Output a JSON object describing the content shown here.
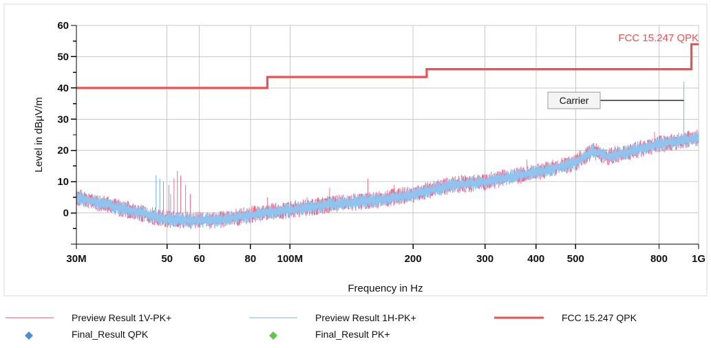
{
  "chart_data": {
    "type": "line",
    "xlabel": "Frequency in Hz",
    "ylabel": "Level in dBµV/m",
    "x_scale": "log",
    "xlim": [
      30000000,
      1000000000
    ],
    "ylim": [
      -10,
      60
    ],
    "x_ticks": [
      {
        "value": 30000000,
        "label": "30M"
      },
      {
        "value": 50000000,
        "label": "50"
      },
      {
        "value": 60000000,
        "label": "60"
      },
      {
        "value": 80000000,
        "label": "80"
      },
      {
        "value": 100000000,
        "label": "100M"
      },
      {
        "value": 200000000,
        "label": "200"
      },
      {
        "value": 300000000,
        "label": "300"
      },
      {
        "value": 400000000,
        "label": "400"
      },
      {
        "value": 500000000,
        "label": "500"
      },
      {
        "value": 800000000,
        "label": "800"
      },
      {
        "value": 1000000000,
        "label": "1G"
      }
    ],
    "y_ticks": [
      0,
      10,
      20,
      30,
      40,
      50,
      60
    ],
    "grid": true,
    "series": [
      {
        "name": "Preview Result 1V-PK+",
        "color": "#f0708f",
        "style": "thin-line",
        "profile": [
          [
            30000000,
            5
          ],
          [
            40000000,
            1
          ],
          [
            50000000,
            -2
          ],
          [
            60000000,
            -2.5
          ],
          [
            70000000,
            -2
          ],
          [
            85000000,
            0
          ],
          [
            100000000,
            1
          ],
          [
            130000000,
            3
          ],
          [
            160000000,
            4
          ],
          [
            200000000,
            6
          ],
          [
            250000000,
            9
          ],
          [
            300000000,
            10
          ],
          [
            400000000,
            13
          ],
          [
            500000000,
            16
          ],
          [
            550000000,
            20
          ],
          [
            600000000,
            18
          ],
          [
            800000000,
            22
          ],
          [
            900000000,
            23
          ],
          [
            1000000000,
            24
          ]
        ],
        "spikes": [
          [
            49000000,
            10
          ],
          [
            50500000,
            9
          ],
          [
            52000000,
            11
          ],
          [
            53000000,
            13.5
          ],
          [
            54000000,
            12
          ],
          [
            55500000,
            9
          ],
          [
            57000000,
            6
          ],
          [
            88000000,
            5
          ],
          [
            110000000,
            5
          ],
          [
            125000000,
            8
          ],
          [
            155000000,
            11
          ],
          [
            180000000,
            9
          ],
          [
            185000000,
            8
          ],
          [
            380000000,
            17
          ],
          [
            560000000,
            21
          ],
          [
            780000000,
            26
          ]
        ]
      },
      {
        "name": "Preview Result 1H-PK+",
        "color": "#8ec4ee",
        "style": "thin-line",
        "profile": [
          [
            30000000,
            5
          ],
          [
            40000000,
            1
          ],
          [
            50000000,
            -2
          ],
          [
            60000000,
            -2.5
          ],
          [
            70000000,
            -2
          ],
          [
            85000000,
            0
          ],
          [
            100000000,
            1
          ],
          [
            130000000,
            3
          ],
          [
            160000000,
            4
          ],
          [
            200000000,
            6
          ],
          [
            250000000,
            9
          ],
          [
            300000000,
            10
          ],
          [
            400000000,
            13
          ],
          [
            500000000,
            16
          ],
          [
            550000000,
            20
          ],
          [
            600000000,
            18
          ],
          [
            800000000,
            22
          ],
          [
            900000000,
            23
          ],
          [
            1000000000,
            24
          ]
        ],
        "spikes": [
          [
            47000000,
            12
          ],
          [
            48000000,
            11
          ],
          [
            51000000,
            6
          ],
          [
            920000000,
            42
          ]
        ]
      },
      {
        "name": "FCC 15.247 QPK",
        "color": "#f05050",
        "style": "thick-line",
        "points": [
          [
            30000000,
            40
          ],
          [
            88000000,
            40
          ],
          [
            88000000,
            43.5
          ],
          [
            216000000,
            43.5
          ],
          [
            216000000,
            46
          ],
          [
            960000000,
            46
          ],
          [
            960000000,
            54
          ],
          [
            1000000000,
            54
          ]
        ]
      }
    ],
    "limit_label": "FCC 15.247 QPK",
    "annotation": {
      "text": "Carrier",
      "x": 920000000,
      "y": 36
    },
    "legend": {
      "placement": "bottom",
      "items": [
        {
          "label": "Preview Result 1V-PK+",
          "marker": "line",
          "color": "#f0708f"
        },
        {
          "label": "Preview Result 1H-PK+",
          "marker": "line",
          "color": "#8ec4ee"
        },
        {
          "label": "FCC 15.247 QPK",
          "marker": "thick-line",
          "color": "#f05050"
        },
        {
          "label": "Final_Result QPK",
          "marker": "diamond",
          "color": "#4a8fd6"
        },
        {
          "label": "Final_Result PK+",
          "marker": "diamond",
          "color": "#5cc84a"
        }
      ]
    }
  }
}
